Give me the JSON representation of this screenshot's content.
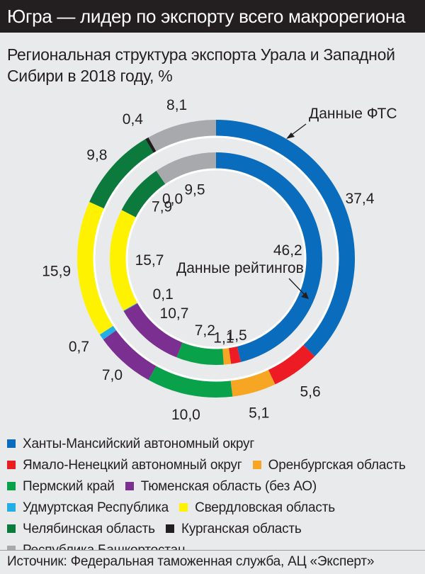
{
  "header": {
    "title": "Югра — лидер по экспорту всего макрорегиона"
  },
  "subtitle": {
    "line1": "Региональная структура экспорта Урала и Западной",
    "line2": "Сибири в 2018 году, %"
  },
  "footer": {
    "source": "Источник: Федеральная таможенная служба, АЦ «Эксперт»"
  },
  "chart_data": {
    "type": "donut",
    "title": "Региональная структура экспорта Урала и Западной Сибири в 2018 году, %",
    "categories": [
      "Ханты-Мансийский автономный округ",
      "Ямало-Ненецкий автономный округ",
      "Оренбургская область",
      "Пермский край",
      "Тюменская область (без АО)",
      "Удмуртская Республика",
      "Свердловская область",
      "Челябинская область",
      "Курганская область",
      "Республика Башкортостан"
    ],
    "colors": [
      "#0a6cbd",
      "#ed1c24",
      "#f7a623",
      "#0aa14b",
      "#7b2f91",
      "#23aee5",
      "#fff200",
      "#0c7a3c",
      "#231f20",
      "#a7a9ac"
    ],
    "series": [
      {
        "name": "Данные ФТС",
        "ring": "outer",
        "values": [
          37.4,
          5.6,
          5.1,
          10.0,
          7.0,
          0.7,
          15.9,
          9.8,
          0.4,
          8.1
        ],
        "labels": [
          "37,4",
          "5,6",
          "5,1",
          "10,0",
          "7,0",
          "0,7",
          "15,9",
          "9,8",
          "0,4",
          "8,1"
        ]
      },
      {
        "name": "Данные рейтингов",
        "ring": "inner",
        "values": [
          46.2,
          1.5,
          1.1,
          7.2,
          10.7,
          0.1,
          15.7,
          7.9,
          0.0,
          9.5
        ],
        "labels": [
          "46,2",
          "1,5",
          "1,1",
          "7,2",
          "10,7",
          "0,1",
          "15,7",
          "7,9",
          "0,0",
          "9,5"
        ]
      }
    ],
    "annotations": [
      "Данные ФТС",
      "Данные рейтингов"
    ]
  },
  "legend": {
    "items": [
      {
        "label": "Ханты-Мансийский автономный округ",
        "color": "#0a6cbd"
      },
      {
        "label": "Ямало-Ненецкий автономный округ",
        "color": "#ed1c24"
      },
      {
        "label": "Оренбургская область",
        "color": "#f7a623"
      },
      {
        "label": "Пермский край",
        "color": "#0aa14b"
      },
      {
        "label": "Тюменская область (без АО)",
        "color": "#7b2f91"
      },
      {
        "label": "Удмуртская Республика",
        "color": "#23aee5"
      },
      {
        "label": "Свердловская область",
        "color": "#fff200"
      },
      {
        "label": "Челябинская область",
        "color": "#0c7a3c"
      },
      {
        "label": "Курганская область",
        "color": "#231f20"
      },
      {
        "label": "Республика Башкортостан",
        "color": "#a7a9ac"
      }
    ]
  }
}
